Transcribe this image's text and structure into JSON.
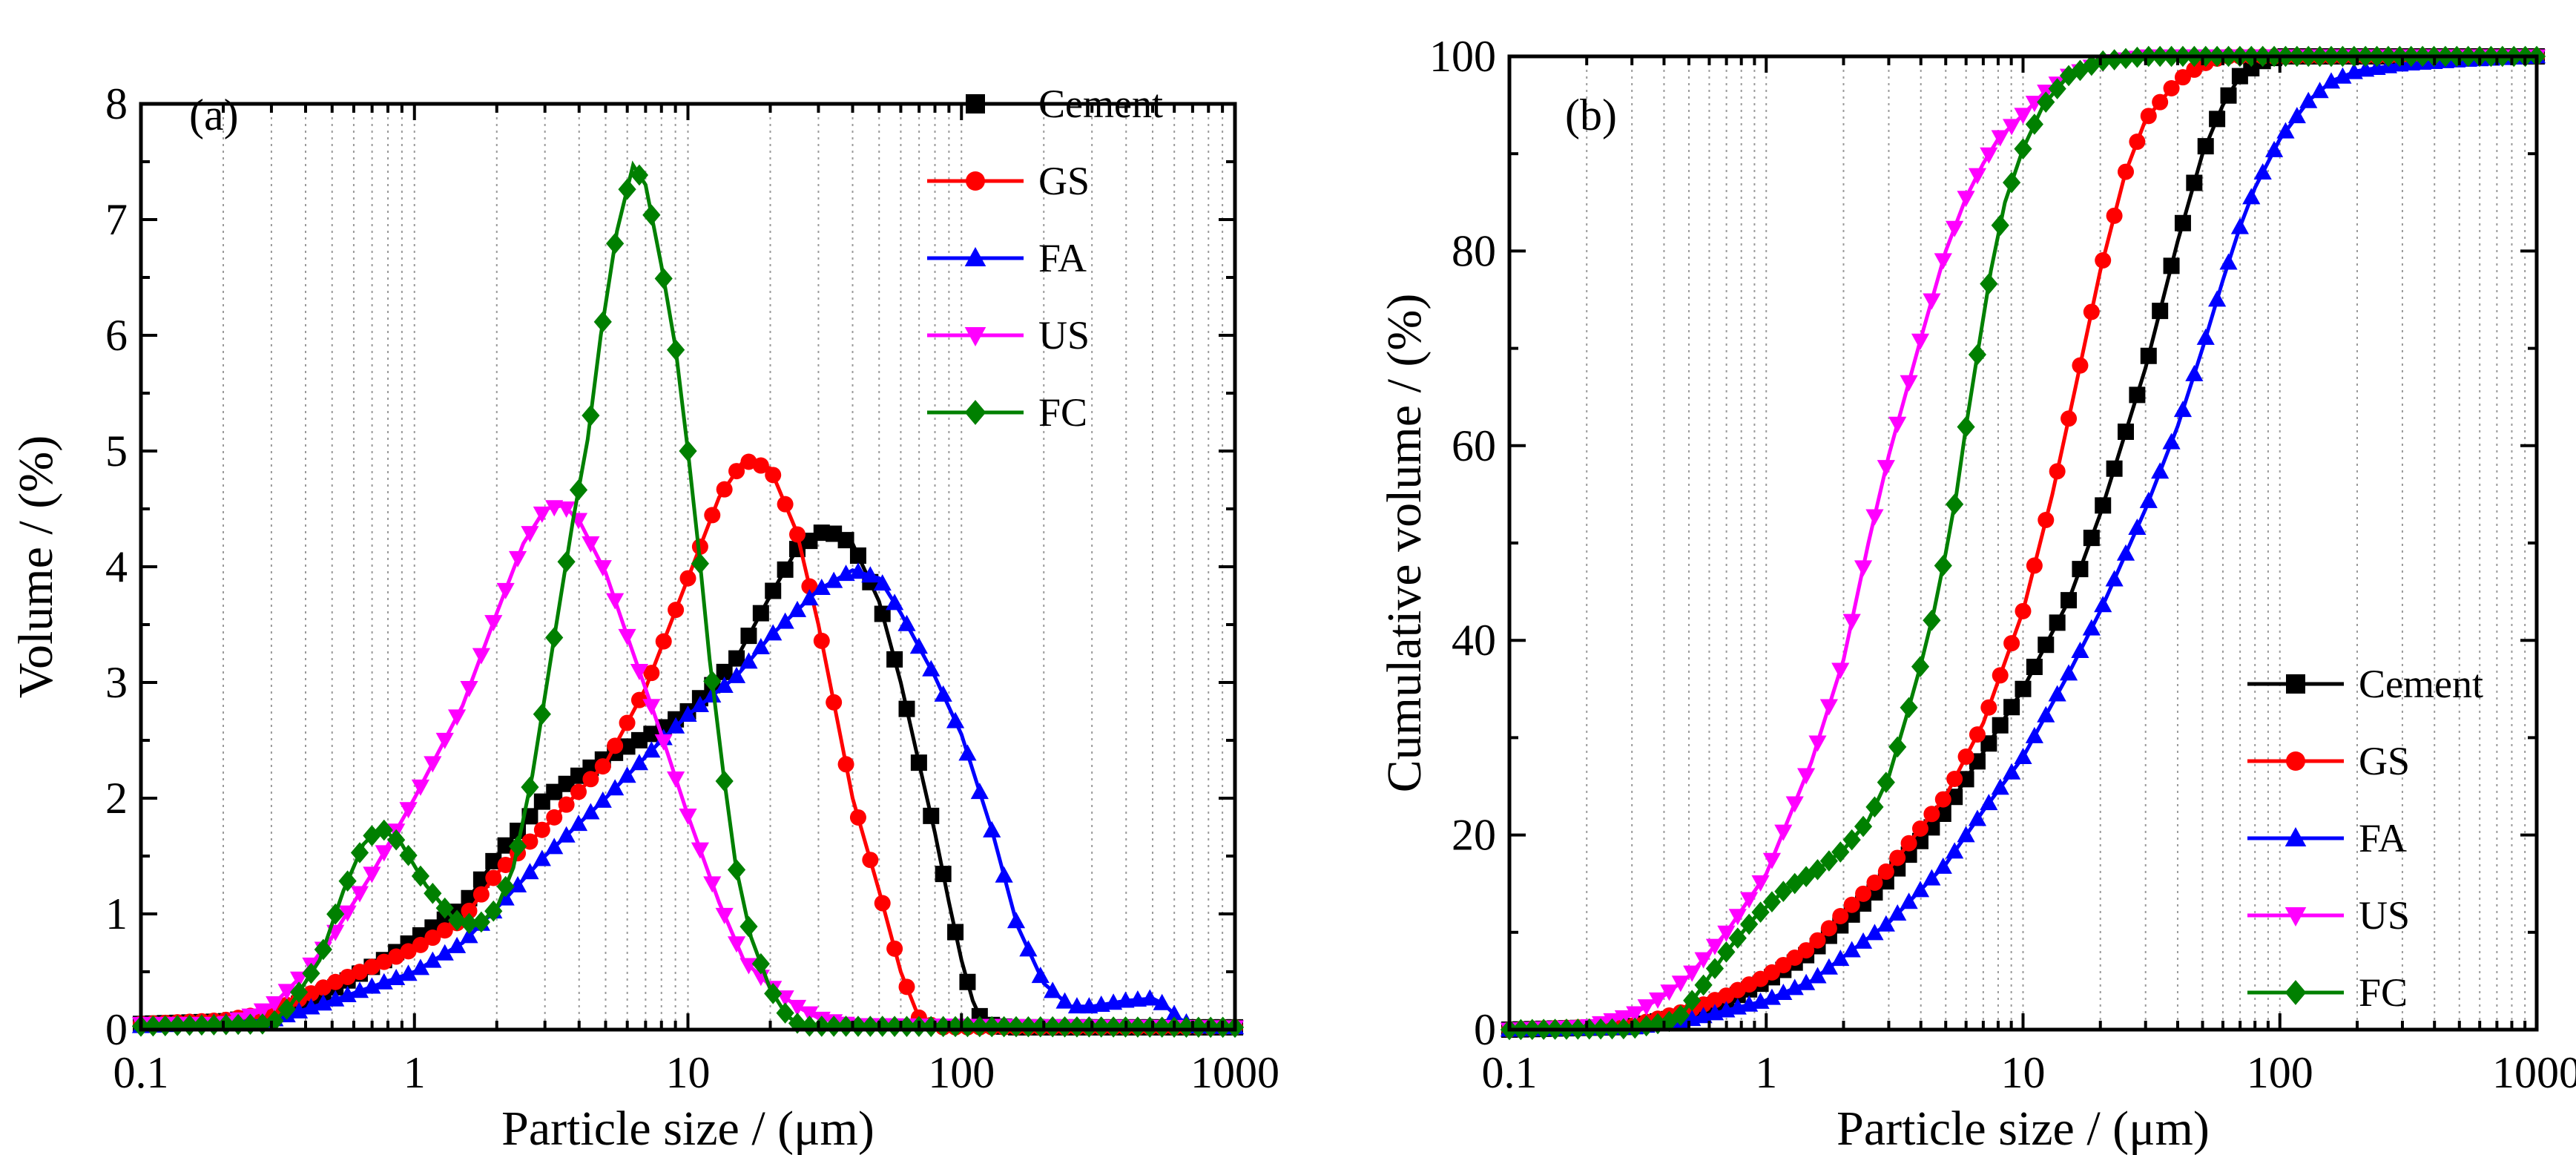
{
  "chart_data": [
    {
      "type": "line",
      "panel_label": "(a)",
      "xlabel": "Particle size / (μm)",
      "ylabel": "Volume / (%)",
      "xscale": "log",
      "xlim": [
        0.1,
        1000
      ],
      "ylim": [
        0,
        8
      ],
      "xticks": [
        "0.1",
        "1",
        "10",
        "100",
        "1000"
      ],
      "yticks": [
        "0",
        "1",
        "2",
        "3",
        "4",
        "5",
        "6",
        "7",
        "8"
      ],
      "grid": "vertical minor dotted",
      "legend_position": "top-right",
      "series": [
        {
          "name": "Cement",
          "color": "#000000",
          "marker": "square",
          "points": [
            [
              0.1,
              0.05
            ],
            [
              0.2,
              0.07
            ],
            [
              0.3,
              0.12
            ],
            [
              0.5,
              0.35
            ],
            [
              0.8,
              0.62
            ],
            [
              1,
              0.78
            ],
            [
              1.5,
              1.05
            ],
            [
              2,
              1.5
            ],
            [
              3,
              2.0
            ],
            [
              5,
              2.35
            ],
            [
              8,
              2.6
            ],
            [
              10,
              2.75
            ],
            [
              15,
              3.2
            ],
            [
              20,
              3.75
            ],
            [
              25,
              4.15
            ],
            [
              32,
              4.32
            ],
            [
              40,
              4.2
            ],
            [
              50,
              3.7
            ],
            [
              60,
              3.0
            ],
            [
              70,
              2.3
            ],
            [
              80,
              1.7
            ],
            [
              90,
              1.1
            ],
            [
              100,
              0.6
            ],
            [
              110,
              0.25
            ],
            [
              120,
              0.05
            ],
            [
              150,
              0.02
            ],
            [
              1000,
              0.02
            ]
          ]
        },
        {
          "name": "GS",
          "color": "#ff0000",
          "marker": "circle",
          "points": [
            [
              0.1,
              0.05
            ],
            [
              0.2,
              0.08
            ],
            [
              0.3,
              0.15
            ],
            [
              0.5,
              0.4
            ],
            [
              0.8,
              0.6
            ],
            [
              1,
              0.7
            ],
            [
              1.5,
              0.95
            ],
            [
              2,
              1.35
            ],
            [
              3,
              1.75
            ],
            [
              5,
              2.3
            ],
            [
              7,
              2.95
            ],
            [
              10,
              3.9
            ],
            [
              13,
              4.6
            ],
            [
              16,
              4.92
            ],
            [
              20,
              4.85
            ],
            [
              25,
              4.3
            ],
            [
              30,
              3.5
            ],
            [
              35,
              2.7
            ],
            [
              40,
              2.0
            ],
            [
              50,
              1.2
            ],
            [
              60,
              0.5
            ],
            [
              70,
              0.1
            ],
            [
              80,
              0.02
            ],
            [
              1000,
              0.02
            ]
          ]
        },
        {
          "name": "FA",
          "color": "#0000ff",
          "marker": "triangle-up",
          "points": [
            [
              0.1,
              0.03
            ],
            [
              0.3,
              0.08
            ],
            [
              0.5,
              0.25
            ],
            [
              1,
              0.5
            ],
            [
              1.5,
              0.75
            ],
            [
              2,
              1.05
            ],
            [
              3,
              1.5
            ],
            [
              5,
              2.0
            ],
            [
              8,
              2.5
            ],
            [
              10,
              2.72
            ],
            [
              15,
              3.05
            ],
            [
              20,
              3.4
            ],
            [
              30,
              3.8
            ],
            [
              40,
              3.97
            ],
            [
              50,
              3.9
            ],
            [
              60,
              3.6
            ],
            [
              80,
              3.05
            ],
            [
              100,
              2.55
            ],
            [
              130,
              1.7
            ],
            [
              160,
              0.9
            ],
            [
              200,
              0.4
            ],
            [
              250,
              0.2
            ],
            [
              300,
              0.2
            ],
            [
              400,
              0.25
            ],
            [
              500,
              0.27
            ],
            [
              550,
              0.22
            ],
            [
              620,
              0.1
            ],
            [
              700,
              0.03
            ],
            [
              1000,
              0.02
            ]
          ]
        },
        {
          "name": "US",
          "color": "#ff00ff",
          "marker": "triangle-down",
          "points": [
            [
              0.1,
              0.05
            ],
            [
              0.2,
              0.05
            ],
            [
              0.25,
              0.12
            ],
            [
              0.3,
              0.2
            ],
            [
              0.4,
              0.5
            ],
            [
              0.5,
              0.8
            ],
            [
              0.7,
              1.35
            ],
            [
              1,
              2.0
            ],
            [
              1.5,
              2.8
            ],
            [
              2,
              3.6
            ],
            [
              2.5,
              4.2
            ],
            [
              3,
              4.5
            ],
            [
              3.5,
              4.53
            ],
            [
              4,
              4.4
            ],
            [
              5,
              3.95
            ],
            [
              6,
              3.4
            ],
            [
              8,
              2.55
            ],
            [
              10,
              1.85
            ],
            [
              13,
              1.1
            ],
            [
              16,
              0.6
            ],
            [
              20,
              0.38
            ],
            [
              25,
              0.2
            ],
            [
              30,
              0.1
            ],
            [
              40,
              0.04
            ],
            [
              1000,
              0.02
            ]
          ]
        },
        {
          "name": "FC",
          "color": "#008000",
          "marker": "diamond",
          "points": [
            [
              0.1,
              0.03
            ],
            [
              0.3,
              0.05
            ],
            [
              0.35,
              0.2
            ],
            [
              0.45,
              0.6
            ],
            [
              0.55,
              1.2
            ],
            [
              0.65,
              1.6
            ],
            [
              0.75,
              1.75
            ],
            [
              0.9,
              1.6
            ],
            [
              1.1,
              1.25
            ],
            [
              1.4,
              0.95
            ],
            [
              1.7,
              0.9
            ],
            [
              2,
              1.05
            ],
            [
              2.3,
              1.4
            ],
            [
              2.7,
              2.2
            ],
            [
              3.2,
              3.3
            ],
            [
              3.8,
              4.4
            ],
            [
              4.3,
              5.1
            ],
            [
              4.8,
              6.0
            ],
            [
              5.5,
              6.9
            ],
            [
              6.3,
              7.47
            ],
            [
              7,
              7.3
            ],
            [
              8,
              6.6
            ],
            [
              9,
              5.9
            ],
            [
              10,
              5.0
            ],
            [
              11,
              4.1
            ],
            [
              12,
              3.2
            ],
            [
              13.5,
              2.2
            ],
            [
              15,
              1.4
            ],
            [
              17,
              0.8
            ],
            [
              20,
              0.35
            ],
            [
              23,
              0.12
            ],
            [
              26,
              0.03
            ],
            [
              1000,
              0.02
            ]
          ]
        }
      ]
    },
    {
      "type": "line",
      "panel_label": "(b)",
      "xlabel": "Particle size / (μm)",
      "ylabel": "Cumulative volume / (%)",
      "xscale": "log",
      "xlim": [
        0.1,
        1000
      ],
      "ylim": [
        0,
        100
      ],
      "xticks": [
        "0.1",
        "1",
        "10",
        "100",
        "1000"
      ],
      "yticks": [
        "0",
        "20",
        "40",
        "60",
        "80",
        "100"
      ],
      "grid": "vertical minor dotted",
      "legend_position": "bottom-right",
      "series": [
        {
          "name": "Cement",
          "color": "#000000",
          "marker": "square",
          "points": [
            [
              0.1,
              0
            ],
            [
              0.3,
              0.3
            ],
            [
              0.5,
              1.5
            ],
            [
              0.7,
              3
            ],
            [
              1,
              5
            ],
            [
              1.5,
              8
            ],
            [
              2,
              11
            ],
            [
              3,
              15.5
            ],
            [
              5,
              22.5
            ],
            [
              7,
              28.5
            ],
            [
              10,
              35
            ],
            [
              15,
              44
            ],
            [
              20,
              53
            ],
            [
              30,
              68
            ],
            [
              40,
              81
            ],
            [
              50,
              90
            ],
            [
              60,
              95
            ],
            [
              70,
              98
            ],
            [
              85,
              99.5
            ],
            [
              100,
              100
            ],
            [
              1000,
              100
            ]
          ]
        },
        {
          "name": "GS",
          "color": "#ff0000",
          "marker": "circle",
          "points": [
            [
              0.1,
              0
            ],
            [
              0.3,
              0.4
            ],
            [
              0.5,
              2
            ],
            [
              0.7,
              3.5
            ],
            [
              1,
              5.5
            ],
            [
              1.5,
              8.5
            ],
            [
              2,
              12
            ],
            [
              3,
              16.5
            ],
            [
              5,
              24
            ],
            [
              7,
              31.5
            ],
            [
              10,
              43
            ],
            [
              13,
              55
            ],
            [
              16,
              66
            ],
            [
              20,
              78
            ],
            [
              25,
              88
            ],
            [
              30,
              93.5
            ],
            [
              40,
              97.5
            ],
            [
              50,
              99.2
            ],
            [
              60,
              100
            ],
            [
              1000,
              100
            ]
          ]
        },
        {
          "name": "FA",
          "color": "#0000ff",
          "marker": "triangle-up",
          "points": [
            [
              0.1,
              0
            ],
            [
              0.3,
              0.2
            ],
            [
              0.5,
              1
            ],
            [
              1,
              3
            ],
            [
              1.5,
              5
            ],
            [
              2,
              7.5
            ],
            [
              3,
              11
            ],
            [
              5,
              17
            ],
            [
              7,
              22.5
            ],
            [
              10,
              28
            ],
            [
              15,
              36.5
            ],
            [
              20,
              43
            ],
            [
              30,
              53.5
            ],
            [
              40,
              62
            ],
            [
              50,
              70
            ],
            [
              60,
              77
            ],
            [
              70,
              82.5
            ],
            [
              80,
              86.5
            ],
            [
              100,
              91.5
            ],
            [
              130,
              95.5
            ],
            [
              160,
              97.5
            ],
            [
              200,
              98.5
            ],
            [
              300,
              99.2
            ],
            [
              500,
              99.6
            ],
            [
              1000,
              100
            ]
          ]
        },
        {
          "name": "US",
          "color": "#ff00ff",
          "marker": "triangle-down",
          "points": [
            [
              0.1,
              0
            ],
            [
              0.2,
              0.3
            ],
            [
              0.3,
              1.5
            ],
            [
              0.4,
              3.5
            ],
            [
              0.5,
              5.5
            ],
            [
              0.7,
              10
            ],
            [
              1,
              16
            ],
            [
              1.5,
              27.5
            ],
            [
              2,
              38
            ],
            [
              2.5,
              50
            ],
            [
              3,
              59
            ],
            [
              4,
              71
            ],
            [
              5,
              80
            ],
            [
              6,
              85.5
            ],
            [
              7,
              89
            ],
            [
              8,
              91.5
            ],
            [
              10,
              94
            ],
            [
              12,
              96.2
            ],
            [
              15,
              98
            ],
            [
              20,
              99.3
            ],
            [
              30,
              100
            ],
            [
              1000,
              100
            ]
          ]
        },
        {
          "name": "FC",
          "color": "#008000",
          "marker": "diamond",
          "points": [
            [
              0.1,
              0
            ],
            [
              0.3,
              0.1
            ],
            [
              0.45,
              1
            ],
            [
              0.55,
              4
            ],
            [
              0.7,
              8
            ],
            [
              0.9,
              11.5
            ],
            [
              1.2,
              14.5
            ],
            [
              1.6,
              16.5
            ],
            [
              2,
              18.5
            ],
            [
              2.5,
              21.5
            ],
            [
              3,
              26
            ],
            [
              3.5,
              32
            ],
            [
              4,
              37.5
            ],
            [
              4.5,
              43
            ],
            [
              5,
              49
            ],
            [
              5.5,
              55
            ],
            [
              6,
              62
            ],
            [
              6.7,
              70
            ],
            [
              7.5,
              78
            ],
            [
              8.5,
              85
            ],
            [
              10,
              90.5
            ],
            [
              12,
              95
            ],
            [
              15,
              98
            ],
            [
              20,
              99.5
            ],
            [
              30,
              100
            ],
            [
              1000,
              100
            ]
          ]
        }
      ]
    }
  ]
}
